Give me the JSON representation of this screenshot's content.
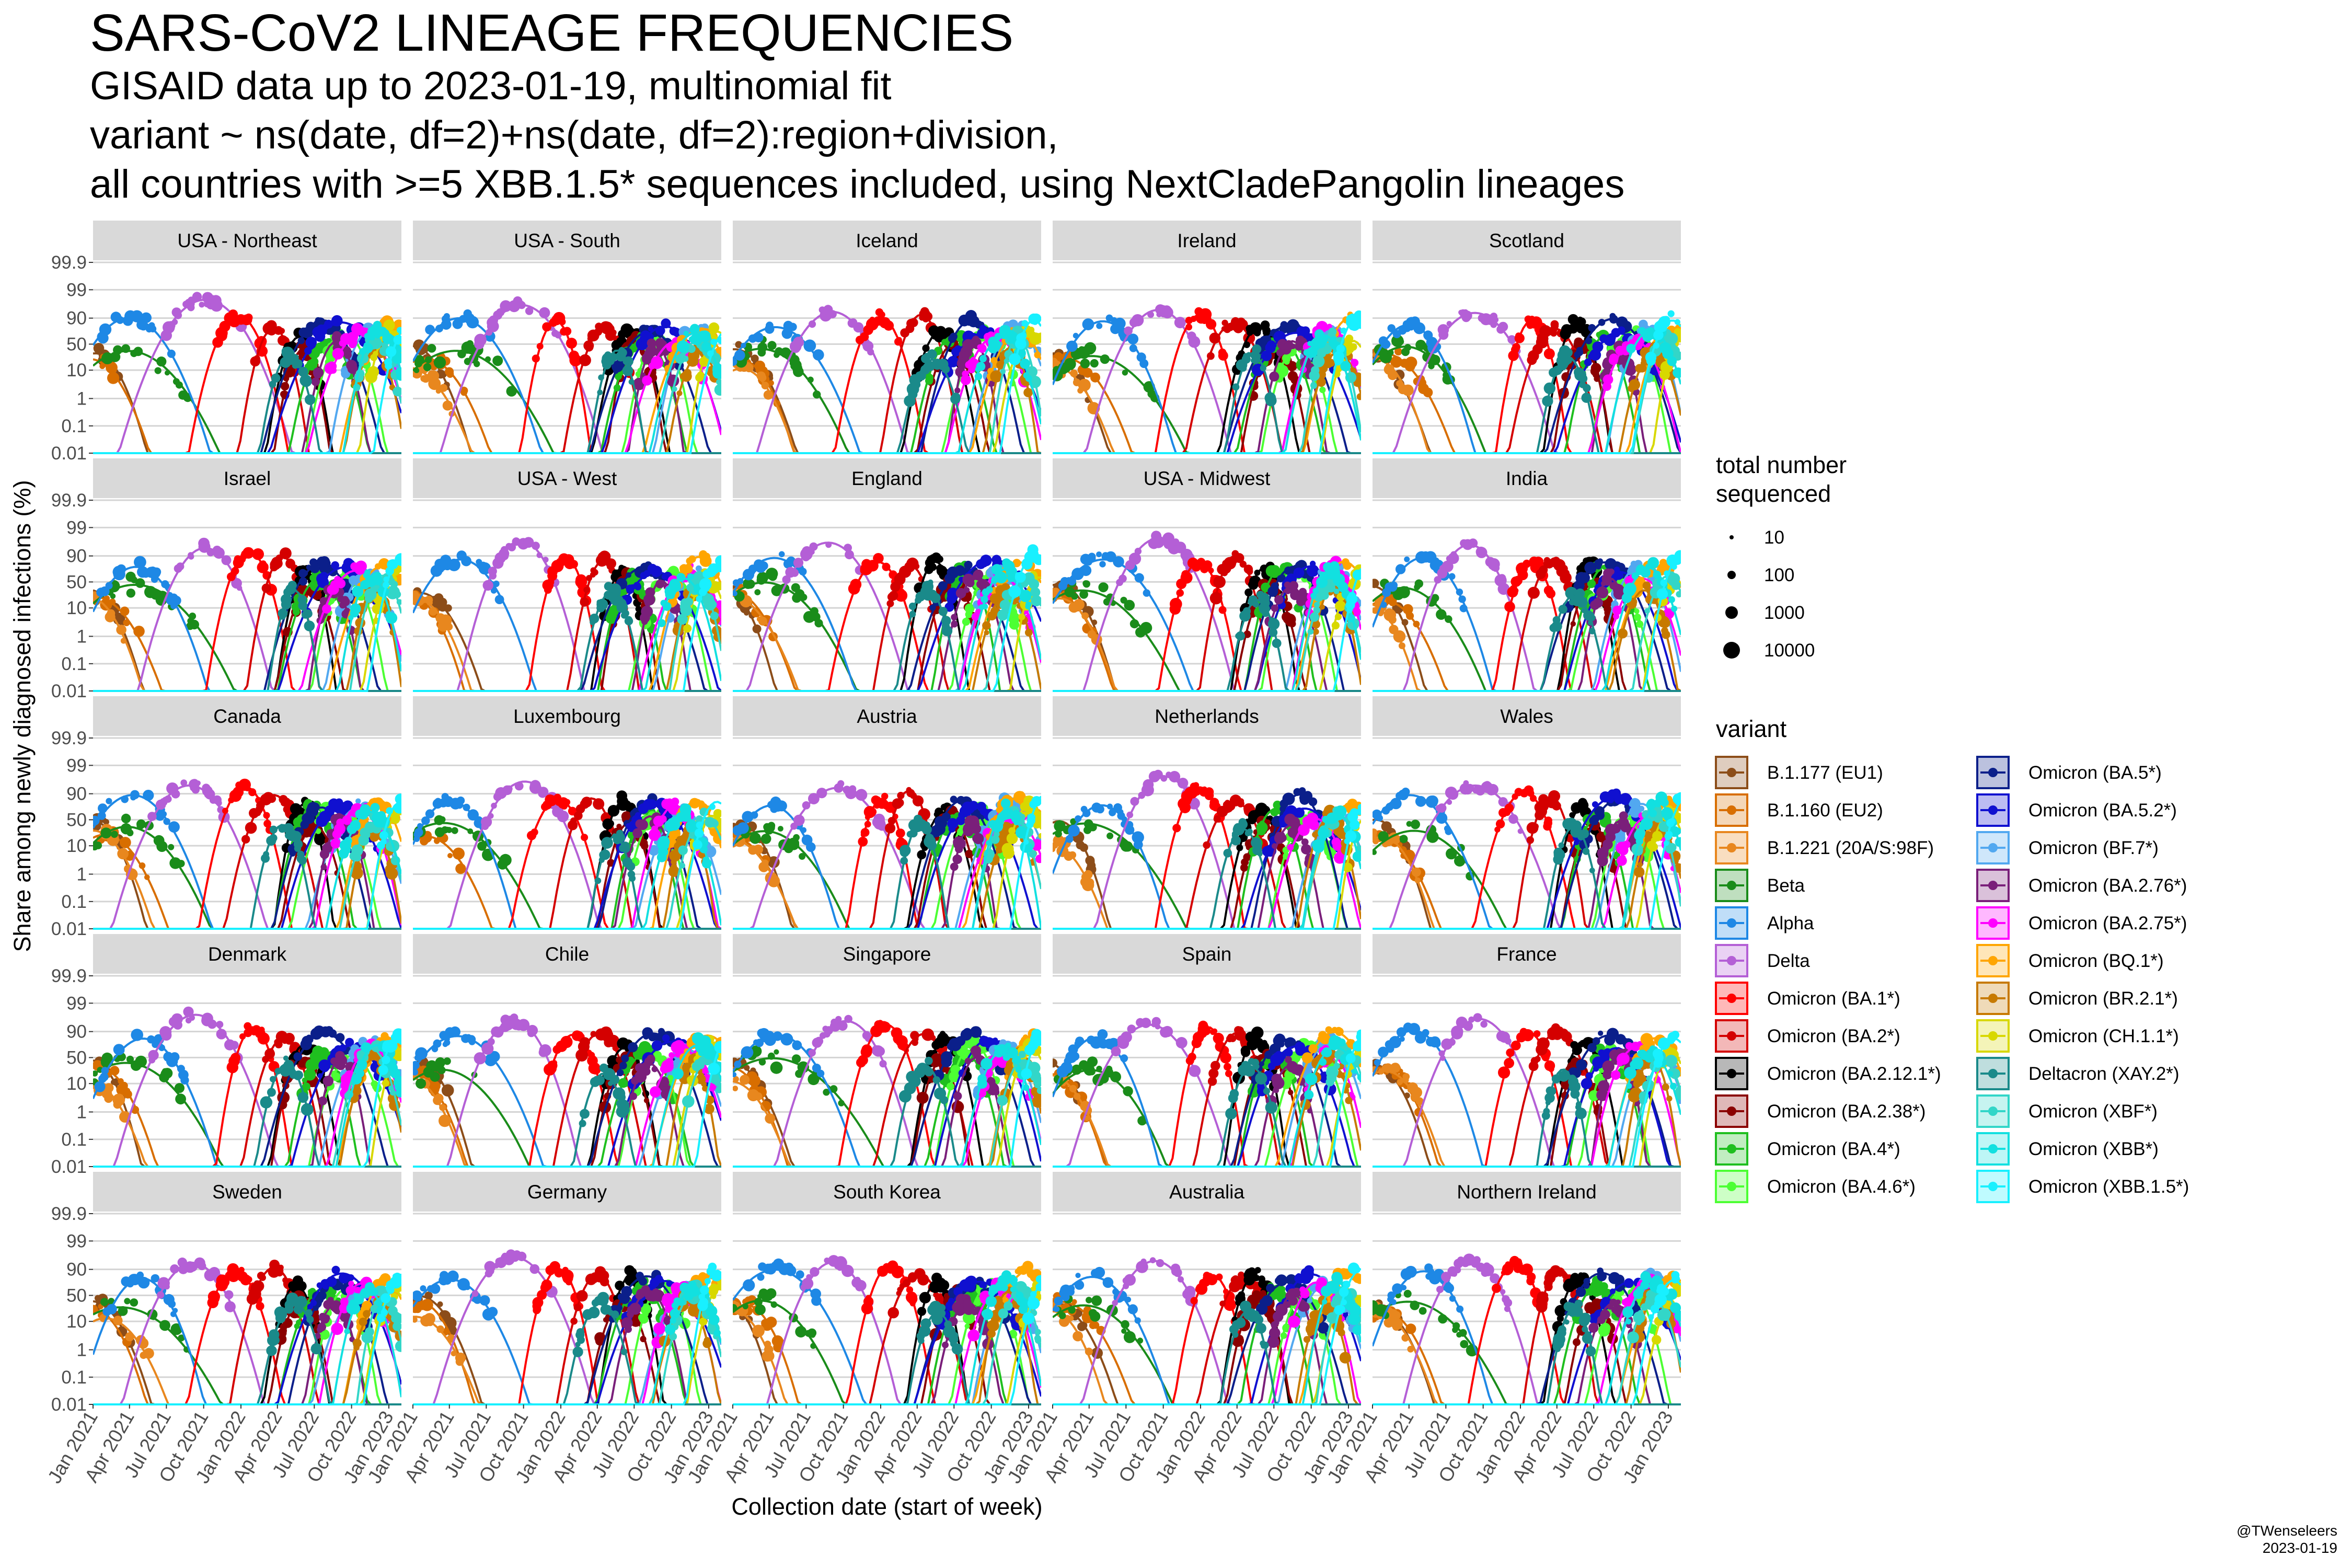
{
  "title": "SARS-CoV2 LINEAGE FREQUENCIES",
  "subtitle_lines": [
    "GISAID data up to 2023-01-19, multinomial fit",
    "variant ~ ns(date, df=2)+ns(date, df=2):region+division,",
    "all countries with >=5 XBB.1.5* sequences included, using NextCladePangolin lineages"
  ],
  "credit": {
    "handle": "@TWenseleers",
    "date": "2023-01-19"
  },
  "chart_data": {
    "type": "line",
    "faceted": true,
    "xlabel": "Collection date (start of week)",
    "ylabel": "Share among newly diagnosed infections (%)",
    "y_scale": "logit",
    "y_ticks": [
      "0.01",
      "0.1",
      "1",
      "10",
      "50",
      "90",
      "99",
      "99.9"
    ],
    "x_ticks": [
      "Jan 2021",
      "Apr 2021",
      "Jul 2021",
      "Oct 2021",
      "Jan 2022",
      "Apr 2022",
      "Jul 2022",
      "Oct 2022",
      "Jan 2023"
    ],
    "xlim": [
      "2021-01-01",
      "2023-02-01"
    ],
    "ylim": [
      0.01,
      99.9
    ],
    "panels": [
      "USA - Northeast",
      "USA - South",
      "Iceland",
      "Ireland",
      "Scotland",
      "Israel",
      "USA - West",
      "England",
      "USA - Midwest",
      "India",
      "Canada",
      "Luxembourg",
      "Austria",
      "Netherlands",
      "Wales",
      "Denmark",
      "Chile",
      "Singapore",
      "Spain",
      "France",
      "Sweden",
      "Germany",
      "South Korea",
      "Australia",
      "Northern Ireland"
    ],
    "size_legend": {
      "title": "total number sequenced",
      "values": [
        "10",
        "100",
        "1000",
        "10000"
      ]
    },
    "variant_legend_title": "variant",
    "variants": [
      {
        "name": "B.1.177 (EU1)",
        "color": "#8c4d19",
        "peak": "2021-01-01",
        "logpeak": -0.5,
        "width": 0.18,
        "noise": 0.25
      },
      {
        "name": "B.1.160 (EU2)",
        "color": "#d86e00",
        "peak": "2021-01-15",
        "logpeak": -1.0,
        "width": 0.2,
        "noise": 0.3
      },
      {
        "name": "B.1.221 (20A/S:98F)",
        "color": "#e8871e",
        "peak": "2021-01-10",
        "logpeak": -1.5,
        "width": 0.2,
        "noise": 0.3
      },
      {
        "name": "Beta",
        "color": "#1a8c1a",
        "peak": "2021-04-01",
        "logpeak": -0.6,
        "width": 0.3,
        "noise": 0.4
      },
      {
        "name": "Alpha",
        "color": "#1e88e5",
        "peak": "2021-04-15",
        "logpeak": 1.8,
        "width": 0.22,
        "noise": 0.25
      },
      {
        "name": "Delta",
        "color": "#b45fd6",
        "peak": "2021-09-15",
        "logpeak": 3.2,
        "width": 0.2,
        "noise": 0.2
      },
      {
        "name": "Omicron (BA.1*)",
        "color": "#ff0000",
        "peak": "2022-01-10",
        "logpeak": 2.2,
        "width": 0.12,
        "noise": 0.2
      },
      {
        "name": "Omicron (BA.2*)",
        "color": "#d40000",
        "peak": "2022-04-01",
        "logpeak": 1.9,
        "width": 0.12,
        "noise": 0.2
      },
      {
        "name": "Omicron (BA.2.12.1*)",
        "color": "#000000",
        "peak": "2022-06-01",
        "logpeak": 1.2,
        "width": 0.1,
        "noise": 0.25
      },
      {
        "name": "Omicron (BA.2.38*)",
        "color": "#8b0000",
        "peak": "2022-06-15",
        "logpeak": -0.3,
        "width": 0.1,
        "noise": 0.3
      },
      {
        "name": "Omicron (BA.4*)",
        "color": "#1fbf1f",
        "peak": "2022-07-15",
        "logpeak": 0.8,
        "width": 0.12,
        "noise": 0.3
      },
      {
        "name": "Omicron (BA.4.6*)",
        "color": "#4cff33",
        "peak": "2022-09-10",
        "logpeak": 0.6,
        "width": 0.12,
        "noise": 0.3
      },
      {
        "name": "Omicron (BA.5*)",
        "color": "#0b1f8a",
        "peak": "2022-08-10",
        "logpeak": 1.6,
        "width": 0.16,
        "noise": 0.2
      },
      {
        "name": "Omicron (BA.5.2*)",
        "color": "#1010d0",
        "peak": "2022-09-10",
        "logpeak": 1.4,
        "width": 0.18,
        "noise": 0.2
      },
      {
        "name": "Omicron (BF.7*)",
        "color": "#52a8f0",
        "peak": "2022-11-10",
        "logpeak": 0.9,
        "width": 0.14,
        "noise": 0.3
      },
      {
        "name": "Omicron (BA.2.76*)",
        "color": "#7a1f7a",
        "peak": "2022-08-20",
        "logpeak": -0.2,
        "width": 0.1,
        "noise": 0.3
      },
      {
        "name": "Omicron (BA.2.75*)",
        "color": "#ff00ff",
        "peak": "2022-11-01",
        "logpeak": 0.7,
        "width": 0.14,
        "noise": 0.3
      },
      {
        "name": "Omicron (BQ.1*)",
        "color": "#ffa500",
        "peak": "2022-12-20",
        "logpeak": 1.6,
        "width": 0.14,
        "noise": 0.2
      },
      {
        "name": "Omicron (BR.2.1*)",
        "color": "#c77a00",
        "peak": "2022-11-20",
        "logpeak": -0.3,
        "width": 0.1,
        "noise": 0.3
      },
      {
        "name": "Omicron (CH.1.1*)",
        "color": "#d8d800",
        "peak": "2023-01-20",
        "logpeak": 0.5,
        "width": 0.1,
        "noise": 0.3
      },
      {
        "name": "Deltacron (XAY.2*)",
        "color": "#1a8a8a",
        "peak": "2022-05-01",
        "logpeak": -1.0,
        "width": 0.1,
        "noise": 0.3
      },
      {
        "name": "Omicron (XBF*)",
        "color": "#33d6c8",
        "peak": "2022-12-10",
        "logpeak": 0.2,
        "width": 0.1,
        "noise": 0.3
      },
      {
        "name": "Omicron (XBB*)",
        "color": "#12e0e0",
        "peak": "2022-11-20",
        "logpeak": 0.8,
        "width": 0.12,
        "noise": 0.3
      },
      {
        "name": "Omicron (XBB.1.5*)",
        "color": "#18f0ff",
        "peak": "2023-02-01",
        "logpeak": 1.8,
        "width": 0.1,
        "noise": 0.3
      }
    ]
  }
}
